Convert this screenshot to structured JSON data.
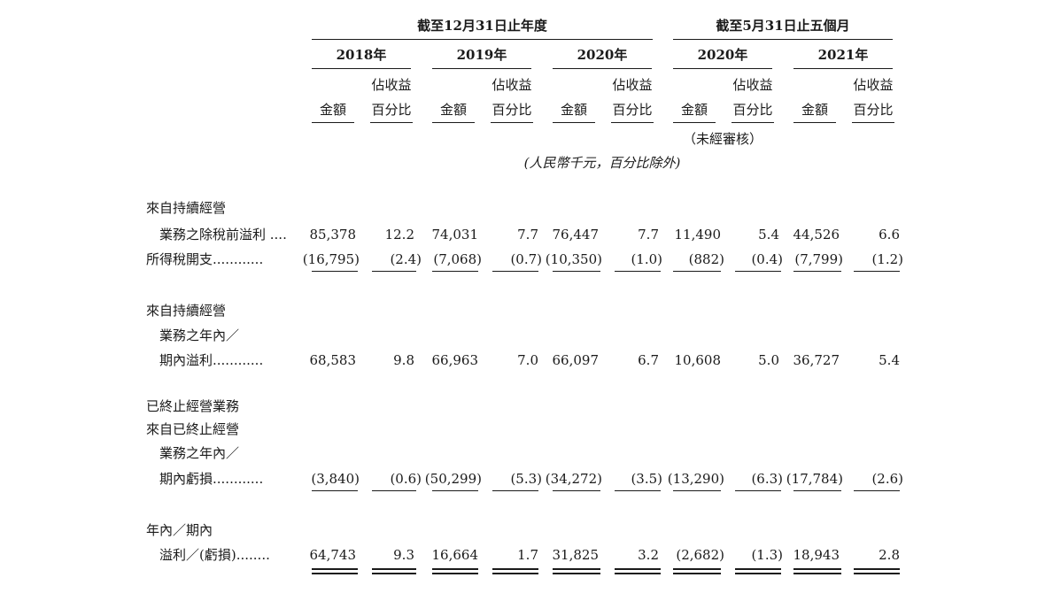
{
  "header": {
    "period_fy": "截至12月31日止年度",
    "period_5m": "截至5月31日止五個月",
    "years": [
      "2018年",
      "2019年",
      "2020年",
      "2020年",
      "2021年"
    ],
    "amount_label": "金額",
    "pct_label_1": "佔收益",
    "pct_label_2": "百分比",
    "unaudited": "（未經審核）",
    "unit_note": "(人民幣千元，百分比除外)"
  },
  "rows": [
    {
      "label_lines": [
        "來自持續經營",
        "業務之除稅前溢利 ...."
      ],
      "values": [
        "85,378",
        "12.2",
        "74,031",
        "7.7",
        "76,447",
        "7.7",
        "11,490",
        "5.4",
        "44,526",
        "6.6"
      ]
    },
    {
      "label_lines": [
        "所得稅開支............"
      ],
      "values": [
        "(16,795)",
        "(2.4)",
        "(7,068)",
        "(0.7)",
        "(10,350)",
        "(1.0)",
        "(882)",
        "(0.4)",
        "(7,799)",
        "(1.2)"
      ]
    },
    {
      "label_lines": [
        "來自持續經營",
        "業務之年內／",
        "期內溢利............"
      ],
      "values": [
        "68,583",
        "9.8",
        "66,963",
        "7.0",
        "66,097",
        "6.7",
        "10,608",
        "5.0",
        "36,727",
        "5.4"
      ]
    },
    {
      "label_lines": [
        "已終止經營業務",
        "來自已終止經營",
        "業務之年內／",
        "期內虧損............"
      ],
      "values": [
        "(3,840)",
        "(0.6)",
        "(50,299)",
        "(5.3)",
        "(34,272)",
        "(3.5)",
        "(13,290)",
        "(6.3)",
        "(17,784)",
        "(2.6)"
      ]
    },
    {
      "label_lines": [
        "年內／期內",
        "溢利／(虧損)........"
      ],
      "values": [
        "64,743",
        "9.3",
        "16,664",
        "1.7",
        "31,825",
        "3.2",
        "(2,682)",
        "(1.3)",
        "18,943",
        "2.8"
      ]
    }
  ]
}
